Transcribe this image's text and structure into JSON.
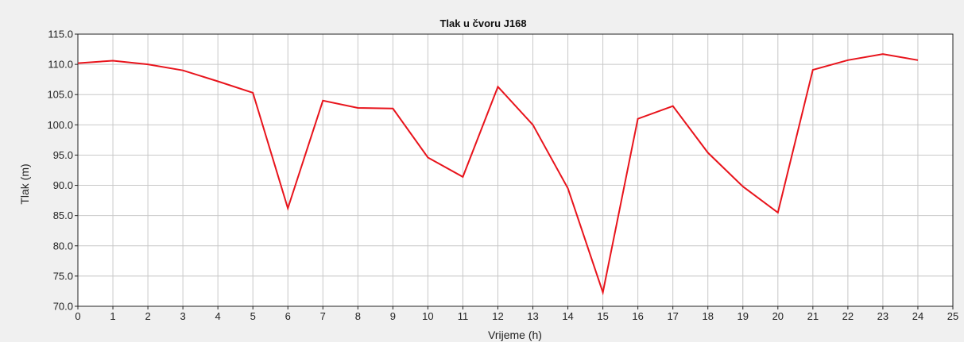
{
  "chart_data": {
    "type": "line",
    "title": "Tlak u čvoru J168",
    "xlabel": "Vrijeme (h)",
    "ylabel": "Tlak (m)",
    "xlim": [
      0,
      25
    ],
    "ylim": [
      70.0,
      115.0
    ],
    "x_ticks": [
      "0",
      "1",
      "2",
      "3",
      "4",
      "5",
      "6",
      "7",
      "8",
      "9",
      "10",
      "11",
      "12",
      "13",
      "14",
      "15",
      "16",
      "17",
      "18",
      "19",
      "20",
      "21",
      "22",
      "23",
      "24",
      "25"
    ],
    "y_ticks": [
      "70.0",
      "75.0",
      "80.0",
      "85.0",
      "90.0",
      "95.0",
      "100.0",
      "105.0",
      "110.0",
      "115.0"
    ],
    "grid": true,
    "legend": "none",
    "colors": {
      "plot_bg": "#ffffff",
      "page_bg": "#f0f0f0",
      "line": "#e8141c",
      "grid": "#c8c8c8"
    },
    "series": [
      {
        "x": [
          0,
          1,
          2,
          3,
          4,
          5,
          6,
          7,
          8,
          9,
          10,
          11,
          12,
          13,
          14,
          15,
          16,
          17,
          18,
          19,
          20,
          21,
          22,
          23,
          24
        ],
        "y": [
          110.2,
          110.6,
          110.0,
          109.0,
          107.2,
          105.3,
          86.2,
          104.0,
          102.8,
          102.7,
          94.6,
          91.4,
          106.3,
          100.0,
          89.5,
          72.3,
          101.0,
          103.1,
          95.4,
          89.8,
          85.5,
          109.1,
          110.7,
          111.7,
          110.7
        ]
      }
    ]
  }
}
